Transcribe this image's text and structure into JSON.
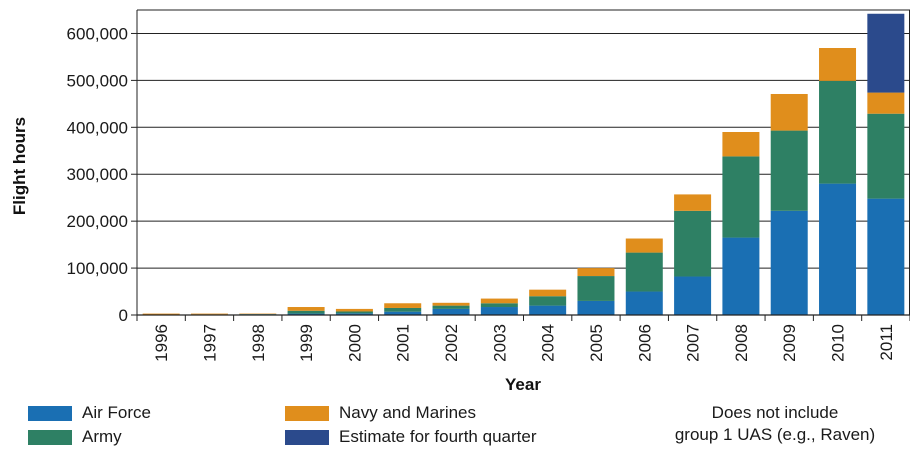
{
  "chart_data": {
    "type": "bar",
    "stacked": true,
    "xlabel": "Year",
    "ylabel": "Flight hours",
    "ylim": [
      0,
      650000
    ],
    "yticks": [
      "0",
      "100,000",
      "200,000",
      "300,000",
      "400,000",
      "500,000",
      "600,000"
    ],
    "categories": [
      "1996",
      "1997",
      "1998",
      "1999",
      "2000",
      "2001",
      "2002",
      "2003",
      "2004",
      "2005",
      "2006",
      "2007",
      "2008",
      "2009",
      "2010",
      "2011"
    ],
    "grid": true,
    "series": [
      {
        "name": "Air Force",
        "color": "#1a6fb3",
        "values": [
          500,
          800,
          1500,
          3000,
          3500,
          7000,
          13000,
          17000,
          20000,
          30000,
          50000,
          82000,
          165000,
          222000,
          280000,
          248000
        ]
      },
      {
        "name": "Army",
        "color": "#2e8064",
        "values": [
          500,
          500,
          500,
          6000,
          4000,
          8000,
          7000,
          8000,
          20000,
          53000,
          83000,
          140000,
          173000,
          171000,
          219000,
          181000
        ]
      },
      {
        "name": "Navy and Marines",
        "color": "#e08e1c",
        "values": [
          2000,
          1700,
          1000,
          8000,
          5500,
          10000,
          6000,
          10000,
          14000,
          17000,
          30000,
          35000,
          52000,
          78000,
          70000,
          45000
        ]
      },
      {
        "name": "Estimate for fourth quarter",
        "color": "#2b4a8c",
        "values": [
          0,
          0,
          0,
          0,
          0,
          0,
          0,
          0,
          0,
          0,
          0,
          0,
          0,
          0,
          0,
          168000
        ]
      }
    ]
  },
  "note": {
    "line1": "Does not include",
    "line2": "group 1 UAS (e.g., Raven)"
  }
}
